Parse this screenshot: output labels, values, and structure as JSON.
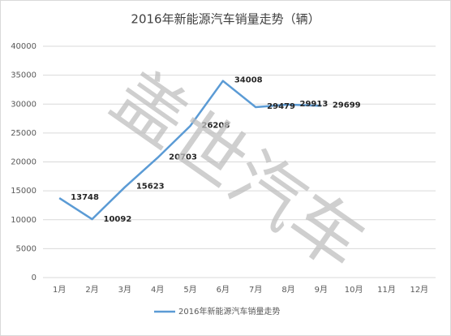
{
  "chart_data": {
    "type": "line",
    "title": "2016年新能源汽车销量走势（辆）",
    "watermark": "盖世汽车",
    "categories": [
      "1月",
      "2月",
      "3月",
      "4月",
      "5月",
      "6月",
      "7月",
      "8月",
      "9月",
      "10月",
      "11月",
      "12月"
    ],
    "series": [
      {
        "name": "2016年新能源汽车销量走势",
        "color": "#5b9bd5",
        "values": [
          13748,
          10092,
          15623,
          20703,
          26208,
          34008,
          29479,
          29913,
          29699,
          null,
          null,
          null
        ]
      }
    ],
    "ylim": [
      0,
      40000
    ],
    "yticks": [
      0,
      5000,
      10000,
      15000,
      20000,
      25000,
      30000,
      35000,
      40000
    ],
    "grid": true,
    "legend": "bottom"
  }
}
